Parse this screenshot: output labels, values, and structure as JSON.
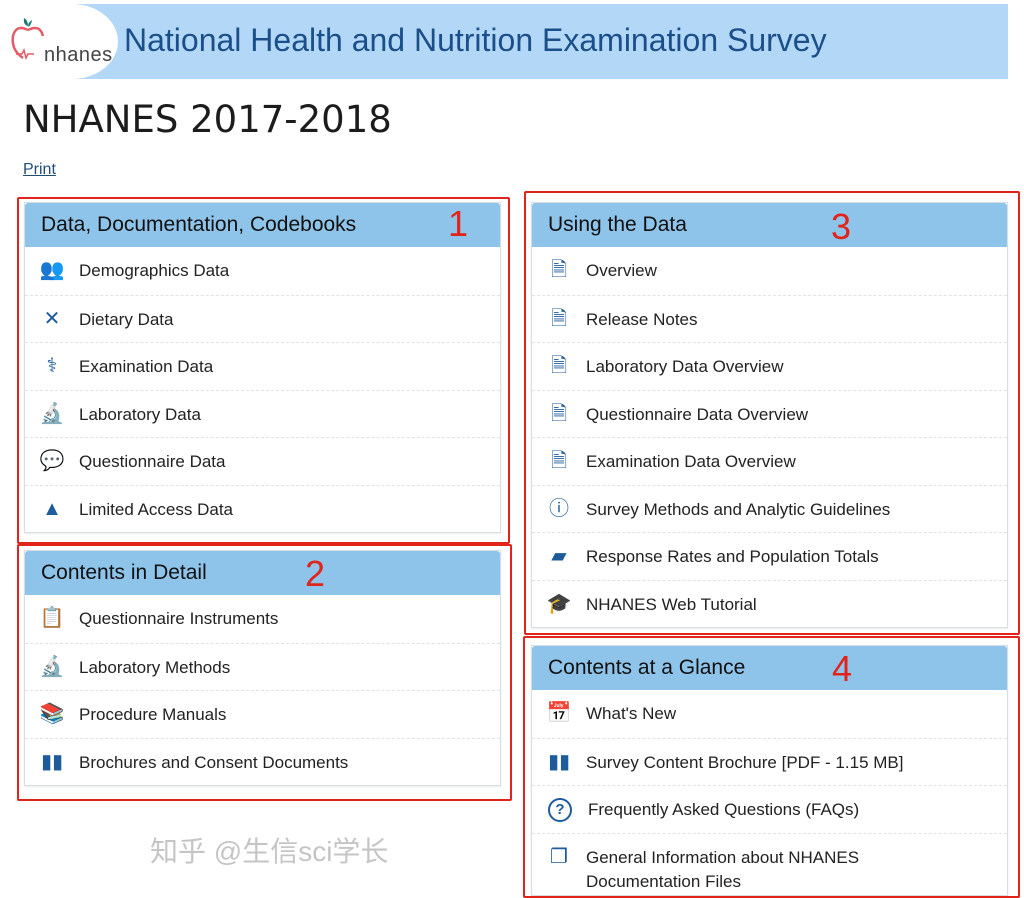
{
  "header": {
    "logo_text": "nhanes",
    "title": "National Health and Nutrition Examination Survey"
  },
  "page_title": "NHANES 2017-2018",
  "print_label": "Print",
  "colors": {
    "banner": "#b3d7f7",
    "panel_heading": "#8ec4ea",
    "icon": "#1d5b9a",
    "annotation": "#e2231a"
  },
  "panels": [
    {
      "title": "Data, Documentation, Codebooks",
      "annotation": "1",
      "items": [
        {
          "label": "Demographics Data",
          "icon": "people-icon"
        },
        {
          "label": "Dietary Data",
          "icon": "fork-knife-icon"
        },
        {
          "label": "Examination Data",
          "icon": "stethoscope-icon"
        },
        {
          "label": "Laboratory Data",
          "icon": "microscope-icon"
        },
        {
          "label": "Questionnaire Data",
          "icon": "chat-bubbles-icon"
        },
        {
          "label": "Limited Access Data",
          "icon": "warning-icon"
        }
      ]
    },
    {
      "title": "Contents in Detail",
      "annotation": "2",
      "items": [
        {
          "label": "Questionnaire Instruments",
          "icon": "clipboard-icon"
        },
        {
          "label": "Laboratory Methods",
          "icon": "microscope-icon"
        },
        {
          "label": "Procedure Manuals",
          "icon": "books-icon"
        },
        {
          "label": "Brochures and Consent Documents",
          "icon": "map-icon"
        }
      ]
    },
    {
      "title": "Using the Data",
      "annotation": "3",
      "items": [
        {
          "label": "Overview",
          "icon": "document-icon"
        },
        {
          "label": "Release Notes",
          "icon": "document-icon"
        },
        {
          "label": "Laboratory Data Overview",
          "icon": "document-icon"
        },
        {
          "label": "Questionnaire Data Overview",
          "icon": "document-icon"
        },
        {
          "label": "Examination Data Overview",
          "icon": "document-icon"
        },
        {
          "label": "Survey Methods and Analytic Guidelines",
          "icon": "info-chart-icon"
        },
        {
          "label": "Response Rates and Population Totals",
          "icon": "us-map-icon"
        },
        {
          "label": "NHANES Web Tutorial",
          "icon": "graduation-cap-icon"
        }
      ]
    },
    {
      "title": "Contents at a Glance",
      "annotation": "4",
      "items": [
        {
          "label": "What's New",
          "icon": "calendar-icon"
        },
        {
          "label": "Survey Content Brochure [PDF - 1.15 MB]",
          "icon": "map-icon"
        },
        {
          "label": "Frequently Asked Questions (FAQs)",
          "icon": "question-circle-icon"
        },
        {
          "label": "General Information about NHANES Documentation Files",
          "icon": "stacked-files-icon"
        }
      ]
    }
  ],
  "watermark": "知乎 @生信sci学长"
}
